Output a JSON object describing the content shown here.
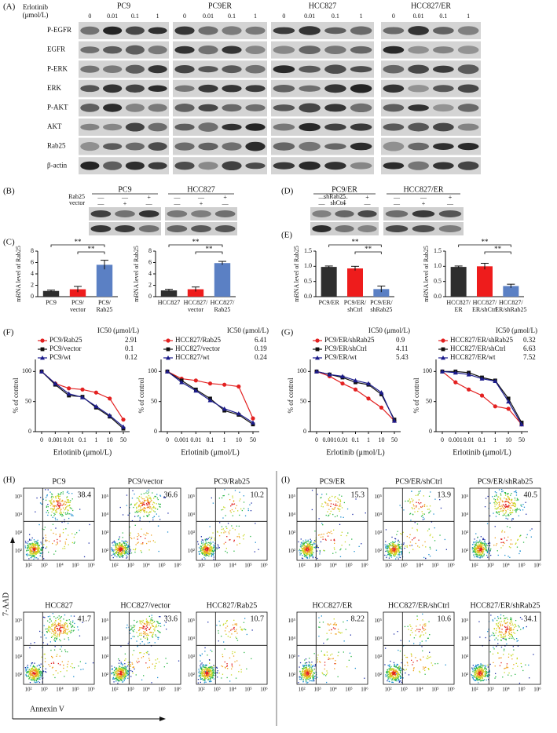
{
  "panel_labels": [
    "(A)",
    "(B)",
    "(C)",
    "(D)",
    "(E)",
    "(F)",
    "(G)",
    "(H)",
    "(I)"
  ],
  "western_blot": {
    "drug_label": "Erlotinib\n(μmol/L)",
    "groups": [
      {
        "name": "PC9",
        "doses": [
          "0",
          "0.01",
          "0.1",
          "1"
        ]
      },
      {
        "name": "PC9ER",
        "doses": [
          "0",
          "0.01",
          "0.1",
          "1"
        ]
      },
      {
        "name": "HCC827",
        "doses": [
          "0",
          "0.01",
          "0.1",
          "1"
        ]
      },
      {
        "name": "HCC827/ER",
        "doses": [
          "0",
          "0.01",
          "0.1",
          "1"
        ]
      }
    ],
    "rows": [
      "P-EGFR",
      "EGFR",
      "P-ERK",
      "ERK",
      "P-AKT",
      "AKT",
      "Rab25",
      "β-actin"
    ]
  },
  "overexpression_blot": {
    "groups": [
      "PC9",
      "HCC827"
    ],
    "conditions": [
      {
        "name": "Rab25",
        "signs": [
          "—",
          "—",
          "+"
        ]
      },
      {
        "name": "vector",
        "signs": [
          "—",
          "+",
          "—"
        ]
      }
    ]
  },
  "knockdown_blot": {
    "groups": [
      "PC9/ER",
      "HCC827/ER"
    ],
    "conditions": [
      {
        "name": "shRab25",
        "signs": [
          "—",
          "—",
          "+"
        ]
      },
      {
        "name": "shCtrl",
        "signs": [
          "—",
          "+",
          "—"
        ]
      }
    ]
  },
  "chart_data": [
    {
      "type": "bar",
      "ylabel": "mRNA  level of Rab25",
      "categories": [
        "PC9",
        "PC9/\nvector",
        "PC9/\nRab25"
      ],
      "values": [
        1.0,
        1.3,
        5.6
      ],
      "errors": [
        0.15,
        0.5,
        0.8
      ],
      "colors": [
        "#2e2e2e",
        "#ee1c1c",
        "#5b80c4"
      ],
      "ylim": [
        0,
        8
      ],
      "yticks": [
        0,
        2,
        4,
        6,
        8
      ],
      "significance": [
        "**",
        "**"
      ]
    },
    {
      "type": "bar",
      "ylabel": "mRNA level of Rab25",
      "categories": [
        "HCC827",
        "HCC827/\nvector",
        "HCC827/\nRab25"
      ],
      "values": [
        1.1,
        1.3,
        5.9
      ],
      "errors": [
        0.2,
        0.4,
        0.3
      ],
      "colors": [
        "#2e2e2e",
        "#ee1c1c",
        "#5b80c4"
      ],
      "ylim": [
        0,
        8
      ],
      "yticks": [
        0,
        2,
        4,
        6,
        8
      ],
      "significance": [
        "**",
        "**"
      ]
    },
    {
      "type": "bar",
      "ylabel": "mRNA  level of Rab25",
      "categories": [
        "PC9/ER",
        "PC9/ER/\nshCtrl",
        "PC9/ER/\nshRab25"
      ],
      "values": [
        0.98,
        0.93,
        0.25
      ],
      "errors": [
        0.03,
        0.07,
        0.1
      ],
      "colors": [
        "#2e2e2e",
        "#ee1c1c",
        "#5b80c4"
      ],
      "ylim": [
        0,
        1.5
      ],
      "yticks": [
        {
          "value": 0,
          "label": "0.0"
        },
        0.5,
        {
          "value": 1,
          "label": "1.0"
        },
        1.5
      ],
      "significance": [
        "**",
        "**"
      ]
    },
    {
      "type": "bar",
      "ylabel": "mRNA  level of Rab25",
      "categories": [
        "HCC827/\nER",
        "HCC827/\nER/shCtrl",
        "HCC827/\nER/shRab25"
      ],
      "values": [
        0.98,
        1.0,
        0.35
      ],
      "errors": [
        0.03,
        0.1,
        0.06
      ],
      "colors": [
        "#2e2e2e",
        "#ee1c1c",
        "#5b80c4"
      ],
      "ylim": [
        0,
        1.5
      ],
      "yticks": [
        {
          "value": 0,
          "label": "0.0"
        },
        0.5,
        {
          "value": 1,
          "label": "1.0"
        },
        1.5
      ],
      "significance": [
        "**",
        "**"
      ]
    },
    {
      "type": "line",
      "ylabel": "% of  control",
      "xlabel": "Erlotinib (μmol/L)",
      "legend_title": "IC50 (μmol/L)",
      "categories": [
        "0",
        "0.001",
        "0.01",
        "0.1",
        "1",
        "10",
        "50"
      ],
      "ylim": [
        0,
        120
      ],
      "yticks": [
        0,
        50,
        100
      ],
      "series": [
        {
          "name": "PC9/Rab25",
          "ic50": 2.91,
          "color": "#e32121",
          "marker": "circle",
          "values": [
            100,
            80,
            72,
            70,
            65,
            55,
            20
          ]
        },
        {
          "name": "PC9/vector",
          "ic50": 0.1,
          "color": "#111111",
          "marker": "square",
          "values": [
            100,
            78,
            60,
            58,
            40,
            25,
            5
          ]
        },
        {
          "name": "PC9/wt",
          "ic50": 0.12,
          "color": "#1c1c8c",
          "marker": "triangle",
          "values": [
            100,
            80,
            63,
            57,
            42,
            27,
            8
          ]
        }
      ]
    },
    {
      "type": "line",
      "ylabel": "% of  control",
      "xlabel": "Erlotinib (μmol/L)",
      "legend_title": "IC50 (μmol/L)",
      "categories": [
        "0",
        "0.001",
        "0.01",
        "0.1",
        "1",
        "10",
        "50"
      ],
      "ylim": [
        0,
        120
      ],
      "yticks": [
        0,
        50,
        100
      ],
      "series": [
        {
          "name": "HCC827/Rab25",
          "ic50": 6.41,
          "color": "#e32121",
          "marker": "circle",
          "values": [
            100,
            88,
            85,
            80,
            78,
            75,
            22
          ]
        },
        {
          "name": "HCC827/vector",
          "ic50": 0.19,
          "color": "#111111",
          "marker": "square",
          "values": [
            100,
            85,
            70,
            55,
            35,
            28,
            12
          ]
        },
        {
          "name": "HCC827/wt",
          "ic50": 0.24,
          "color": "#1c1c8c",
          "marker": "triangle",
          "values": [
            100,
            82,
            68,
            52,
            38,
            30,
            15
          ]
        }
      ]
    },
    {
      "type": "line",
      "ylabel": "% of  control",
      "xlabel": "Erlotinib (μmol/L)",
      "legend_title": "IC50 (μmol/L)",
      "categories": [
        "0",
        "0.001",
        "0.01",
        "0.1",
        "1",
        "10",
        "50"
      ],
      "ylim": [
        0,
        120
      ],
      "yticks": [
        0,
        50,
        100
      ],
      "series": [
        {
          "name": "PC9/ER/shRab25",
          "ic50": 0.9,
          "color": "#e32121",
          "marker": "circle",
          "values": [
            100,
            92,
            80,
            70,
            55,
            40,
            18
          ]
        },
        {
          "name": "PC9/ER/shCtrl",
          "ic50": 4.11,
          "color": "#111111",
          "marker": "square",
          "values": [
            100,
            95,
            90,
            82,
            78,
            62,
            20
          ]
        },
        {
          "name": "PC9/ER/wt",
          "ic50": 5.43,
          "color": "#1c1c8c",
          "marker": "triangle",
          "values": [
            100,
            95,
            92,
            85,
            80,
            65,
            18
          ]
        }
      ]
    },
    {
      "type": "line",
      "ylabel": "% of  control",
      "xlabel": "Erlotinib (μmol/L)",
      "legend_title": "IC50 (μmol/L)",
      "categories": [
        "0",
        "0.001",
        "0.01",
        "0.1",
        "1",
        "10",
        "50"
      ],
      "ylim": [
        0,
        120
      ],
      "yticks": [
        0,
        50,
        100
      ],
      "series": [
        {
          "name": "HCC827/ER/shRab25",
          "ic50": 0.32,
          "color": "#e32121",
          "marker": "circle",
          "values": [
            100,
            82,
            70,
            60,
            42,
            38,
            12
          ]
        },
        {
          "name": "HCC827/ER/shCtrl",
          "ic50": 6.63,
          "color": "#111111",
          "marker": "square",
          "values": [
            100,
            100,
            98,
            90,
            85,
            55,
            15
          ]
        },
        {
          "name": "HCC827/ER/wt",
          "ic50": 7.52,
          "color": "#1c1c8c",
          "marker": "triangle",
          "values": [
            100,
            98,
            95,
            88,
            84,
            50,
            12
          ]
        }
      ]
    }
  ],
  "flow": {
    "x_label": "Annexin V",
    "y_label": "7-AAD",
    "xticks": [
      "10²",
      "10³",
      "10⁴",
      "10⁵",
      "10⁶"
    ],
    "yticks": [
      "10²",
      "10³",
      "10⁴",
      "10⁵"
    ],
    "panels": [
      {
        "plots": [
          {
            "title": "PC9",
            "value": 38.4
          },
          {
            "title": "PC9/vector",
            "value": 36.6
          },
          {
            "title": "PC9/Rab25",
            "value": 10.2
          },
          {
            "title": "HCC827",
            "value": 41.7
          },
          {
            "title": "HCC827/vector",
            "value": 33.6
          },
          {
            "title": "HCC827/Rab25",
            "value": 10.7
          }
        ]
      },
      {
        "plots": [
          {
            "title": "PC9/ER",
            "value": 15.3
          },
          {
            "title": "PC9/ER/shCtrl",
            "value": 13.9
          },
          {
            "title": "PC9/ER/shRab25",
            "value": 40.5
          },
          {
            "title": "HCC827/ER",
            "value": 8.22
          },
          {
            "title": "HCC827/ER/shCtrl",
            "value": 10.6
          },
          {
            "title": "HCC827/ER/shRab25",
            "value": 34.1
          }
        ]
      }
    ]
  }
}
